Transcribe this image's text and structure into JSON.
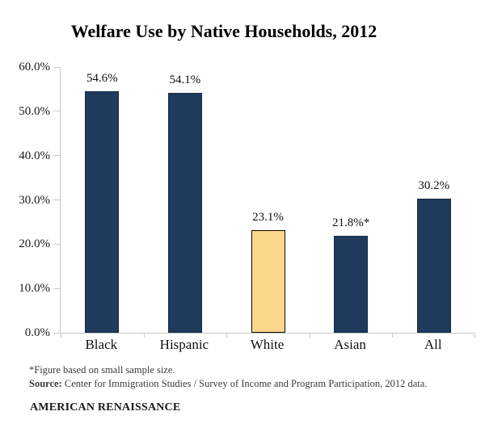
{
  "chart_data": {
    "type": "bar",
    "title": "Welfare Use by Native Households, 2012",
    "categories": [
      "Black",
      "Hispanic",
      "White",
      "Asian",
      "All"
    ],
    "values": [
      54.6,
      54.1,
      23.1,
      21.8,
      30.2
    ],
    "value_labels": [
      "54.6%",
      "54.1%",
      "23.1%",
      "21.8%*",
      "30.2%"
    ],
    "bar_colors": [
      "#1e3a5c",
      "#1e3a5c",
      "#fbd78b",
      "#1e3a5c",
      "#1e3a5c"
    ],
    "bar_border_colors": [
      "#17293f",
      "#17293f",
      "#0a0a0a",
      "#17293f",
      "#17293f"
    ],
    "xlabel": "",
    "ylabel": "",
    "ylim": [
      0,
      60
    ],
    "ytick_step": 10,
    "ytick_labels": [
      "0.0%",
      "10.0%",
      "20.0%",
      "30.0%",
      "40.0%",
      "50.0%",
      "60.0%"
    ],
    "grid": false,
    "legend": "none"
  },
  "footnotes": {
    "asterisk_note": "*Figure based on small sample size.",
    "source_label": "Source:",
    "source_text": " Center for Immigration Studies / Survey of Income and Program Participation, 2012 data.",
    "attribution": "AMERICAN RENAISSANCE"
  },
  "colors": {
    "background": "#ffffff",
    "bar_navy": "#1e3a5c",
    "bar_highlight_tan": "#fbd78b",
    "axis_line": "#c9c9c9",
    "text": "#111111",
    "footnote_text": "#3b3b3b"
  }
}
